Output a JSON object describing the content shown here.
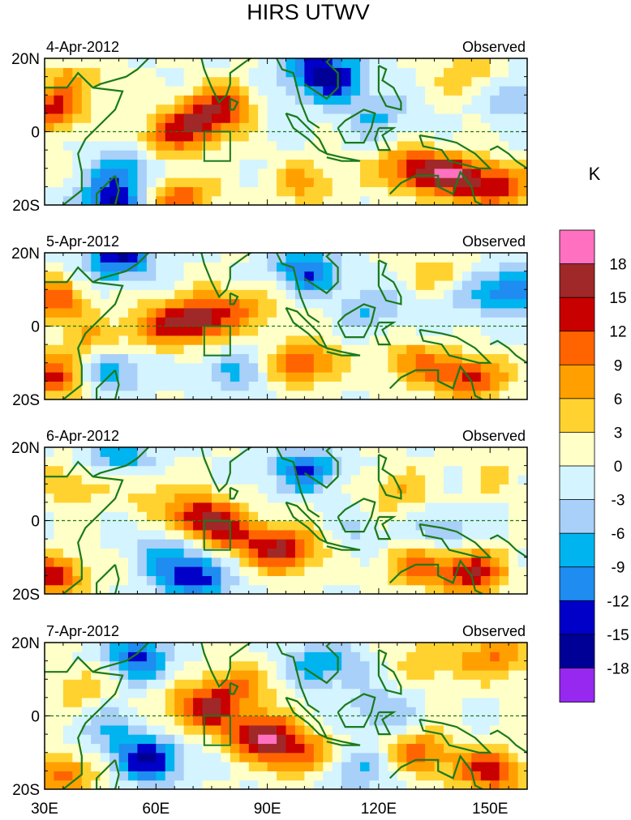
{
  "title": "HIRS UTWV",
  "unit": "K",
  "lat_labels": [
    "20N",
    "0",
    "20S"
  ],
  "lon_labels": [
    "30E",
    "60E",
    "90E",
    "120E",
    "150E"
  ],
  "lon_range": [
    30,
    160
  ],
  "lat_range": [
    -20,
    20
  ],
  "box_region": {
    "lon": [
      73,
      80
    ],
    "lat": [
      -8,
      0
    ]
  },
  "panels": [
    {
      "date": "4-Apr-2012",
      "label": "Observed"
    },
    {
      "date": "5-Apr-2012",
      "label": "Observed"
    },
    {
      "date": "6-Apr-2012",
      "label": "Observed"
    },
    {
      "date": "7-Apr-2012",
      "label": "Observed"
    }
  ],
  "colorbar": {
    "labels": [
      "18",
      "15",
      "12",
      "9",
      "6",
      "3",
      "0",
      "-3",
      "-6",
      "-9",
      "-12",
      "-15",
      "-18"
    ],
    "colors": [
      "#ff70c0",
      "#a02828",
      "#c80000",
      "#ff6400",
      "#ffa000",
      "#ffd230",
      "#ffffc8",
      "#d4f4ff",
      "#a8d0f8",
      "#00b4f0",
      "#1e8cf0",
      "#0000c8",
      "#000096",
      "#9628f0"
    ]
  },
  "anomaly_blobs": [
    [
      {
        "lon": 72,
        "lat": 3,
        "v": 14
      },
      {
        "lon": 62,
        "lat": -2,
        "v": 8
      },
      {
        "lon": 80,
        "lat": 8,
        "v": 9
      },
      {
        "lon": 140,
        "lat": -12,
        "v": 15
      },
      {
        "lon": 128,
        "lat": -10,
        "v": 12
      },
      {
        "lon": 152,
        "lat": -15,
        "v": 12
      },
      {
        "lon": 32,
        "lat": 6,
        "v": 12
      },
      {
        "lon": 38,
        "lat": 14,
        "v": 6
      },
      {
        "lon": 66,
        "lat": -18,
        "v": 12
      },
      {
        "lon": 100,
        "lat": -14,
        "v": 7
      },
      {
        "lon": 108,
        "lat": 14,
        "v": -12
      },
      {
        "lon": 102,
        "lat": 18,
        "v": -9
      },
      {
        "lon": 48,
        "lat": -19,
        "v": -15
      },
      {
        "lon": 52,
        "lat": -10,
        "v": -9
      },
      {
        "lon": 120,
        "lat": 4,
        "v": -6
      },
      {
        "lon": 155,
        "lat": 10,
        "v": -6
      },
      {
        "lon": 92,
        "lat": 8,
        "v": -3
      },
      {
        "lon": 145,
        "lat": 15,
        "v": 6
      }
    ],
    [
      {
        "lon": 72,
        "lat": 2,
        "v": 16
      },
      {
        "lon": 60,
        "lat": 0,
        "v": 9
      },
      {
        "lon": 100,
        "lat": -10,
        "v": 12
      },
      {
        "lon": 32,
        "lat": 7,
        "v": 12
      },
      {
        "lon": 33,
        "lat": -14,
        "v": 12
      },
      {
        "lon": 145,
        "lat": -14,
        "v": 13
      },
      {
        "lon": 130,
        "lat": -10,
        "v": 9
      },
      {
        "lon": 42,
        "lat": -4,
        "v": 6
      },
      {
        "lon": 85,
        "lat": 6,
        "v": 7
      },
      {
        "lon": 48,
        "lat": -12,
        "v": -9
      },
      {
        "lon": 80,
        "lat": -12,
        "v": -6
      },
      {
        "lon": 100,
        "lat": 15,
        "v": -12
      },
      {
        "lon": 50,
        "lat": 19,
        "v": -15
      },
      {
        "lon": 155,
        "lat": 10,
        "v": -12
      },
      {
        "lon": 135,
        "lat": 15,
        "v": 5
      },
      {
        "lon": 118,
        "lat": 5,
        "v": -6
      },
      {
        "lon": 140,
        "lat": 6,
        "v": -3
      }
    ],
    [
      {
        "lon": 72,
        "lat": 1,
        "v": 15
      },
      {
        "lon": 95,
        "lat": -8,
        "v": 15
      },
      {
        "lon": 82,
        "lat": -4,
        "v": 10
      },
      {
        "lon": 145,
        "lat": -14,
        "v": 15
      },
      {
        "lon": 130,
        "lat": -12,
        "v": 9
      },
      {
        "lon": 32,
        "lat": -15,
        "v": 13
      },
      {
        "lon": 38,
        "lat": 10,
        "v": 6
      },
      {
        "lon": 70,
        "lat": -15,
        "v": -15
      },
      {
        "lon": 62,
        "lat": -8,
        "v": -6
      },
      {
        "lon": 100,
        "lat": 14,
        "v": -12
      },
      {
        "lon": 50,
        "lat": 18,
        "v": -9
      },
      {
        "lon": 125,
        "lat": 8,
        "v": 6
      },
      {
        "lon": 150,
        "lat": 12,
        "v": 3
      },
      {
        "lon": 138,
        "lat": -3,
        "v": -6
      },
      {
        "lon": 115,
        "lat": -3,
        "v": -3
      },
      {
        "lon": 58,
        "lat": 8,
        "v": 4
      }
    ],
    [
      {
        "lon": 72,
        "lat": 2,
        "v": 14
      },
      {
        "lon": 88,
        "lat": -5,
        "v": 16
      },
      {
        "lon": 98,
        "lat": -10,
        "v": 12
      },
      {
        "lon": 82,
        "lat": 8,
        "v": 9
      },
      {
        "lon": 150,
        "lat": -15,
        "v": 14
      },
      {
        "lon": 132,
        "lat": -10,
        "v": 10
      },
      {
        "lon": 35,
        "lat": -16,
        "v": 10
      },
      {
        "lon": 58,
        "lat": -12,
        "v": -15
      },
      {
        "lon": 55,
        "lat": 16,
        "v": -12
      },
      {
        "lon": 105,
        "lat": 14,
        "v": -9
      },
      {
        "lon": 120,
        "lat": 2,
        "v": -6
      },
      {
        "lon": 152,
        "lat": 16,
        "v": 9
      },
      {
        "lon": 135,
        "lat": 15,
        "v": 6
      },
      {
        "lon": 40,
        "lat": 8,
        "v": 5
      },
      {
        "lon": 48,
        "lat": -4,
        "v": -6
      },
      {
        "lon": 115,
        "lat": -15,
        "v": -6
      }
    ]
  ]
}
